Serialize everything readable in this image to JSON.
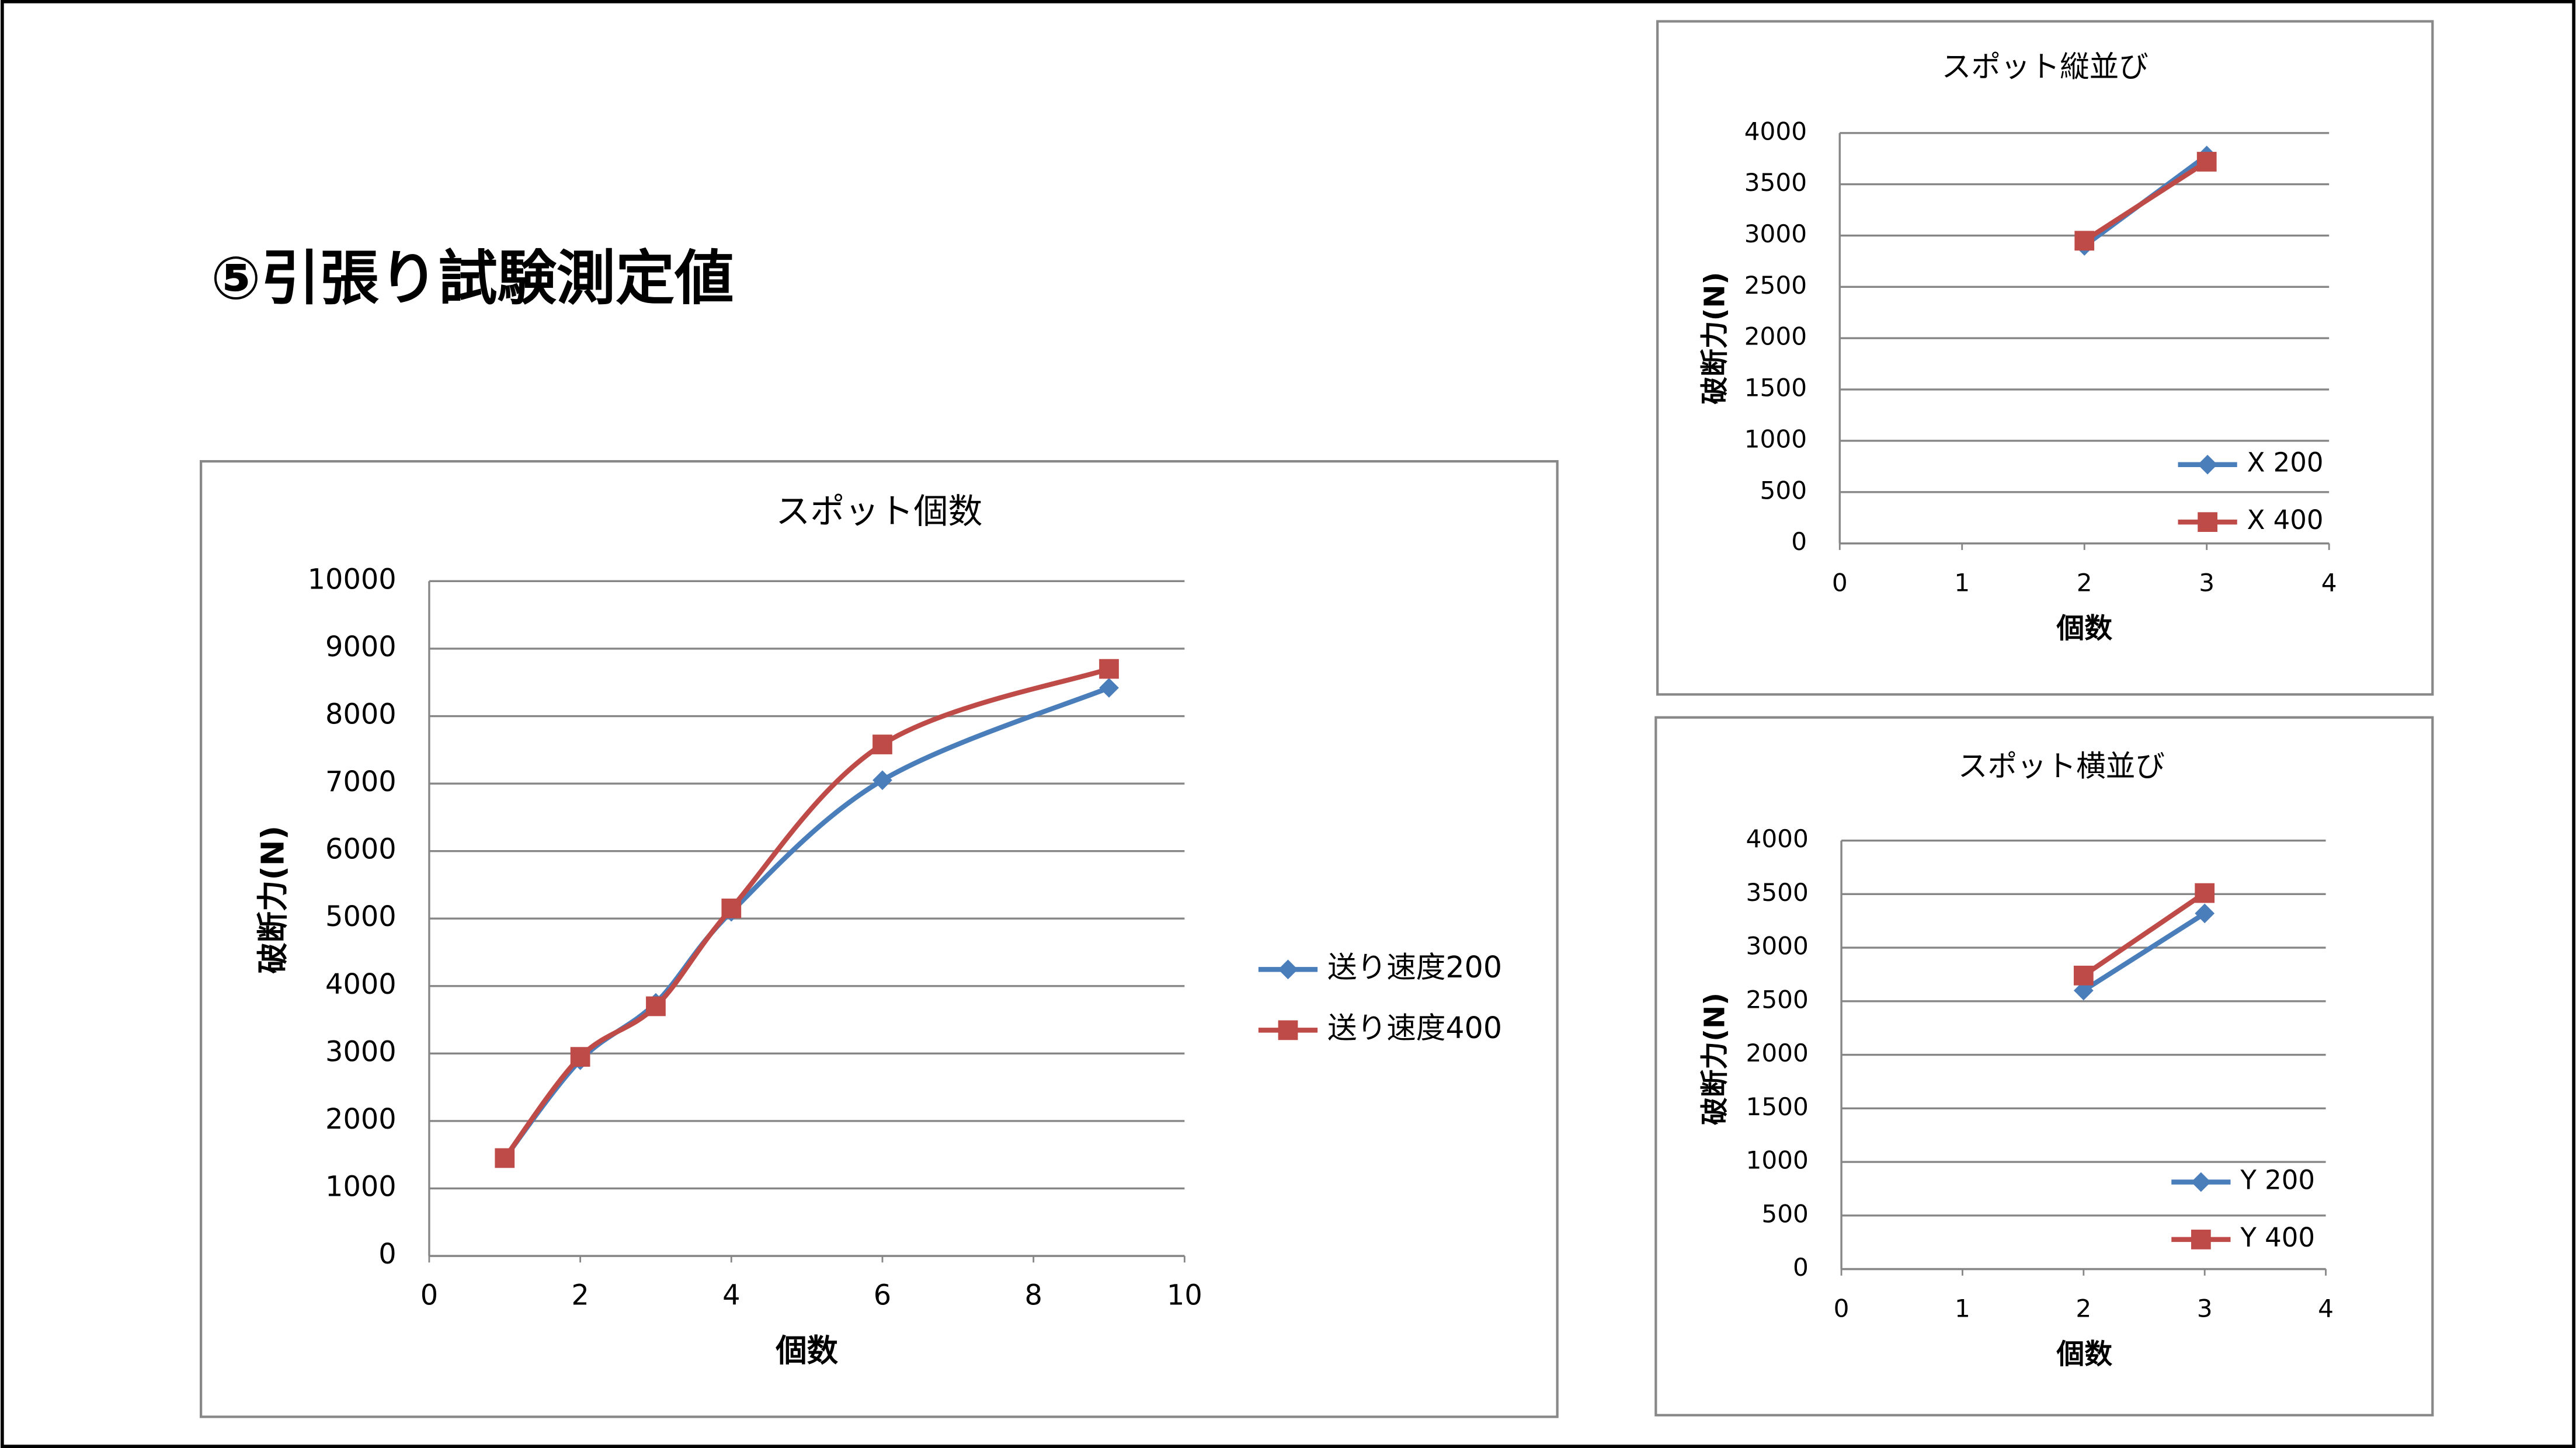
{
  "header": {
    "title": "⑤引張り試験測定値"
  },
  "chart_data": [
    {
      "type": "line",
      "title": "スポット個数",
      "xlabel": "個数",
      "ylabel": "破断力(N)",
      "x": [
        1,
        2,
        3,
        4,
        6,
        9
      ],
      "series": [
        {
          "name": "送り速度200",
          "color": "#4a7ebb",
          "marker": "diamond",
          "values": [
            1450,
            2900,
            3750,
            5100,
            7050,
            8420
          ]
        },
        {
          "name": "送り速度400",
          "color": "#be4b48",
          "marker": "square",
          "values": [
            1450,
            2950,
            3700,
            5150,
            7580,
            8700
          ]
        }
      ],
      "xlim": [
        0,
        10
      ],
      "xticks": [
        0,
        2,
        4,
        6,
        8,
        10
      ],
      "ylim": [
        0,
        10000
      ],
      "yticks": [
        0,
        1000,
        2000,
        3000,
        4000,
        5000,
        6000,
        7000,
        8000,
        9000,
        10000
      ],
      "grid": true,
      "smooth": true,
      "legend": "right"
    },
    {
      "type": "line",
      "title": "スポット縦並び",
      "xlabel": "個数",
      "ylabel": "破断力(N)",
      "x": [
        2,
        3
      ],
      "series": [
        {
          "name": "X 200",
          "color": "#4a7ebb",
          "marker": "diamond",
          "values": [
            2900,
            3780
          ]
        },
        {
          "name": "X 400",
          "color": "#be4b48",
          "marker": "square",
          "values": [
            2950,
            3720
          ]
        }
      ],
      "xlim": [
        0,
        4
      ],
      "xticks": [
        0,
        1,
        2,
        3,
        4
      ],
      "ylim": [
        0,
        4000
      ],
      "yticks": [
        0,
        500,
        1000,
        1500,
        2000,
        2500,
        3000,
        3500,
        4000
      ],
      "grid": true,
      "smooth": false,
      "legend": "lower right"
    },
    {
      "type": "line",
      "title": "スポット横並び",
      "xlabel": "個数",
      "ylabel": "破断力(N)",
      "x": [
        2,
        3
      ],
      "series": [
        {
          "name": "Y 200",
          "color": "#4a7ebb",
          "marker": "diamond",
          "values": [
            2600,
            3320
          ]
        },
        {
          "name": "Y 400",
          "color": "#be4b48",
          "marker": "square",
          "values": [
            2740,
            3510
          ]
        }
      ],
      "xlim": [
        0,
        4
      ],
      "xticks": [
        0,
        1,
        2,
        3,
        4
      ],
      "ylim": [
        0,
        4000
      ],
      "yticks": [
        0,
        500,
        1000,
        1500,
        2000,
        2500,
        3000,
        3500,
        4000
      ],
      "grid": true,
      "smooth": false,
      "legend": "lower right"
    }
  ]
}
